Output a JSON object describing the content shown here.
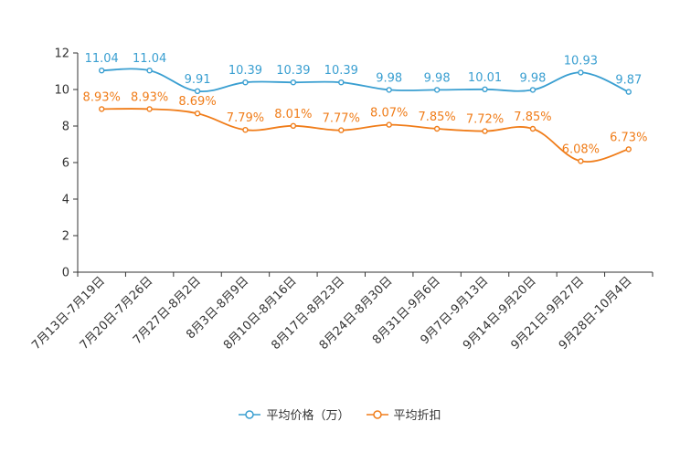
{
  "chart_data": {
    "type": "line",
    "categories": [
      "7月13日-7月19日",
      "7月20日-7月26日",
      "7月27日-8月2日",
      "8月3日-8月9日",
      "8月10日-8月16日",
      "8月17日-8月23日",
      "8月24日-8月30日",
      "8月31日-9月6日",
      "9月7日-9月13日",
      "9月14日-9月20日",
      "9月21日-9月27日",
      "9月28日-10月4日"
    ],
    "series": [
      {
        "name": "平均价格（万）",
        "color": "#3a9fd1",
        "values": [
          11.04,
          11.04,
          9.91,
          10.39,
          10.39,
          10.39,
          9.98,
          9.98,
          10.01,
          9.98,
          10.93,
          9.87
        ],
        "labels": [
          "11.04",
          "11.04",
          "9.91",
          "10.39",
          "10.39",
          "10.39",
          "9.98",
          "9.98",
          "10.01",
          "9.98",
          "10.93",
          "9.87"
        ]
      },
      {
        "name": "平均折扣",
        "color": "#f07d1a",
        "values": [
          8.93,
          8.93,
          8.69,
          7.79,
          8.01,
          7.77,
          8.07,
          7.85,
          7.72,
          7.85,
          6.08,
          6.73
        ],
        "labels": [
          "8.93%",
          "8.93%",
          "8.69%",
          "7.79%",
          "8.01%",
          "7.77%",
          "8.07%",
          "7.85%",
          "7.72%",
          "7.85%",
          "6.08%",
          "6.73%"
        ]
      }
    ],
    "yticks": [
      "0",
      "2",
      "4",
      "6",
      "8",
      "10",
      "12"
    ],
    "ylim": [
      0,
      12
    ],
    "title": "",
    "xlabel": "",
    "ylabel": "",
    "legend_position": "bottom-center"
  }
}
